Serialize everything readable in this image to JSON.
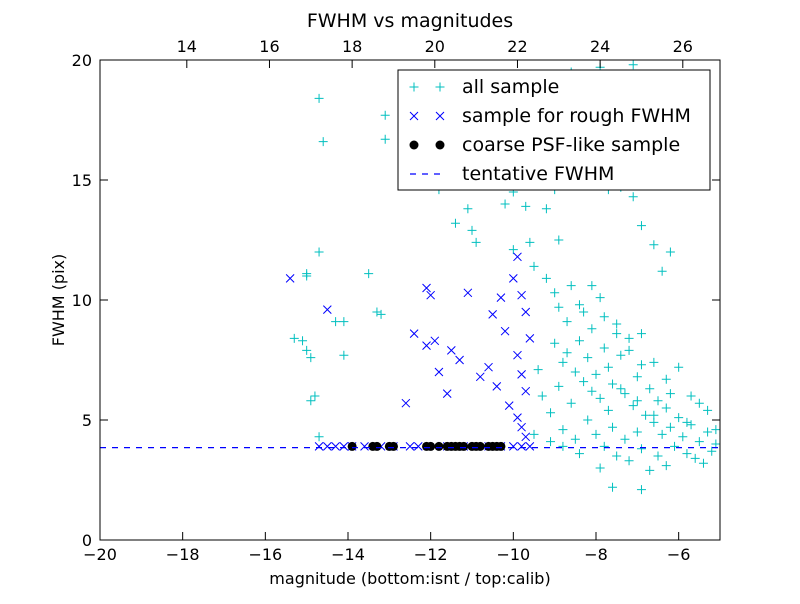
{
  "chart_data": {
    "type": "scatter",
    "title": "FWHM vs magnitudes",
    "xlabel": "magnitude (bottom:isnt / top:calib)",
    "ylabel": "FWHM (pix)",
    "xlim": [
      -20,
      -5
    ],
    "ylim": [
      0,
      20
    ],
    "x_ticks": [
      -20,
      -18,
      -16,
      -14,
      -12,
      -10,
      -8,
      -6
    ],
    "x_tick_labels": [
      "−20",
      "−18",
      "−16",
      "−14",
      "−12",
      "−10",
      "−8",
      "−6"
    ],
    "y_ticks": [
      0,
      5,
      10,
      15,
      20
    ],
    "y_tick_labels": [
      "0",
      "5",
      "10",
      "15",
      "20"
    ],
    "top_axis": {
      "offset": 31.9,
      "ticks": [
        14,
        16,
        18,
        20,
        22,
        24,
        26
      ],
      "tick_labels": [
        "14",
        "16",
        "18",
        "20",
        "22",
        "24",
        "26"
      ]
    },
    "grid": false,
    "legend_position": "top-right",
    "series": [
      {
        "name": "all sample",
        "marker": "plus",
        "color": "#00bfbf",
        "points": [
          [
            -14.7,
            18.4
          ],
          [
            -14.6,
            16.6
          ],
          [
            -13.1,
            17.7
          ],
          [
            -13.1,
            16.7
          ],
          [
            -14.7,
            12.0
          ],
          [
            -15.0,
            11.1
          ],
          [
            -15.0,
            11.0
          ],
          [
            -13.5,
            11.1
          ],
          [
            -14.1,
            9.1
          ],
          [
            -14.3,
            9.1
          ],
          [
            -13.2,
            9.4
          ],
          [
            -13.3,
            9.5
          ],
          [
            -15.3,
            8.4
          ],
          [
            -15.1,
            8.3
          ],
          [
            -15.0,
            7.9
          ],
          [
            -14.9,
            7.6
          ],
          [
            -14.1,
            7.7
          ],
          [
            -14.8,
            6.0
          ],
          [
            -14.9,
            5.8
          ],
          [
            -14.7,
            4.3
          ],
          [
            -11.8,
            14.6
          ],
          [
            -11.4,
            13.2
          ],
          [
            -11.1,
            13.8
          ],
          [
            -11.0,
            12.9
          ],
          [
            -10.9,
            12.4
          ],
          [
            -10.2,
            14.0
          ],
          [
            -10.0,
            14.5
          ],
          [
            -10.0,
            12.1
          ],
          [
            -9.8,
            15.5
          ],
          [
            -9.7,
            13.9
          ],
          [
            -9.6,
            12.4
          ],
          [
            -9.4,
            15.9
          ],
          [
            -9.5,
            11.4
          ],
          [
            -9.2,
            13.8
          ],
          [
            -9.0,
            14.6
          ],
          [
            -8.9,
            12.5
          ],
          [
            -8.6,
            19.5
          ],
          [
            -8.4,
            17.3
          ],
          [
            -8.2,
            18.8
          ],
          [
            -8.0,
            16.2
          ],
          [
            -7.9,
            19.7
          ],
          [
            -7.8,
            16.0
          ],
          [
            -7.7,
            14.6
          ],
          [
            -7.5,
            18.1
          ],
          [
            -7.4,
            14.7
          ],
          [
            -7.3,
            16.9
          ],
          [
            -7.1,
            19.8
          ],
          [
            -7.1,
            14.3
          ],
          [
            -6.9,
            13.1
          ],
          [
            -6.8,
            15.4
          ],
          [
            -6.6,
            12.3
          ],
          [
            -6.4,
            11.2
          ],
          [
            -6.2,
            12.0
          ],
          [
            -9.2,
            10.9
          ],
          [
            -9.0,
            10.3
          ],
          [
            -8.9,
            9.7
          ],
          [
            -8.7,
            9.1
          ],
          [
            -8.6,
            10.6
          ],
          [
            -8.4,
            8.3
          ],
          [
            -8.3,
            9.5
          ],
          [
            -8.2,
            7.6
          ],
          [
            -8.1,
            8.8
          ],
          [
            -8.0,
            6.9
          ],
          [
            -7.9,
            10.1
          ],
          [
            -7.8,
            8.0
          ],
          [
            -7.7,
            7.2
          ],
          [
            -7.6,
            6.5
          ],
          [
            -7.5,
            9.0
          ],
          [
            -7.4,
            7.7
          ],
          [
            -7.3,
            6.1
          ],
          [
            -7.2,
            8.4
          ],
          [
            -7.1,
            5.6
          ],
          [
            -7.0,
            6.8
          ],
          [
            -6.9,
            7.3
          ],
          [
            -6.8,
            5.2
          ],
          [
            -6.7,
            6.3
          ],
          [
            -6.6,
            4.9
          ],
          [
            -6.5,
            5.8
          ],
          [
            -6.4,
            4.4
          ],
          [
            -6.3,
            5.5
          ],
          [
            -6.2,
            4.7
          ],
          [
            -6.1,
            3.9
          ],
          [
            -6.0,
            5.1
          ],
          [
            -5.9,
            4.3
          ],
          [
            -5.8,
            3.6
          ],
          [
            -5.7,
            4.8
          ],
          [
            -5.6,
            3.4
          ],
          [
            -5.5,
            4.1
          ],
          [
            -5.4,
            3.2
          ],
          [
            -5.3,
            4.5
          ],
          [
            -5.2,
            3.7
          ],
          [
            -5.1,
            4.0
          ],
          [
            -9.4,
            7.1
          ],
          [
            -9.3,
            6.0
          ],
          [
            -9.1,
            5.3
          ],
          [
            -8.9,
            6.4
          ],
          [
            -8.8,
            4.6
          ],
          [
            -8.6,
            5.7
          ],
          [
            -8.5,
            4.2
          ],
          [
            -8.3,
            6.6
          ],
          [
            -8.2,
            5.0
          ],
          [
            -8.0,
            4.4
          ],
          [
            -7.9,
            5.9
          ],
          [
            -7.8,
            3.9
          ],
          [
            -7.6,
            4.7
          ],
          [
            -7.5,
            3.5
          ],
          [
            -7.3,
            4.2
          ],
          [
            -7.2,
            3.3
          ],
          [
            -7.0,
            4.5
          ],
          [
            -6.9,
            3.8
          ],
          [
            -6.7,
            2.9
          ],
          [
            -6.5,
            3.5
          ],
          [
            -6.3,
            3.1
          ],
          [
            -7.6,
            2.2
          ],
          [
            -6.9,
            2.1
          ],
          [
            -7.9,
            3.0
          ],
          [
            -8.4,
            3.6
          ],
          [
            -8.8,
            3.9
          ],
          [
            -9.1,
            4.1
          ],
          [
            -9.5,
            4.4
          ],
          [
            -8.7,
            7.8
          ],
          [
            -8.5,
            7.0
          ],
          [
            -8.1,
            6.2
          ],
          [
            -7.7,
            5.4
          ],
          [
            -7.4,
            6.3
          ],
          [
            -7.0,
            5.8
          ],
          [
            -6.6,
            5.2
          ],
          [
            -6.2,
            6.1
          ],
          [
            -5.8,
            4.9
          ],
          [
            -5.5,
            5.7
          ],
          [
            -9.0,
            8.2
          ],
          [
            -8.8,
            7.4
          ],
          [
            -8.4,
            9.8
          ],
          [
            -8.1,
            10.6
          ],
          [
            -7.8,
            9.3
          ],
          [
            -7.5,
            8.6
          ],
          [
            -7.2,
            7.9
          ],
          [
            -6.9,
            8.6
          ],
          [
            -6.6,
            7.4
          ],
          [
            -6.3,
            6.7
          ],
          [
            -6.0,
            7.2
          ],
          [
            -5.7,
            6.0
          ],
          [
            -5.3,
            5.4
          ],
          [
            -5.1,
            4.6
          ]
        ]
      },
      {
        "name": "sample for rough FWHM",
        "marker": "x",
        "color": "#0000ff",
        "points": [
          [
            -15.4,
            10.9
          ],
          [
            -14.5,
            9.6
          ],
          [
            -12.6,
            5.7
          ],
          [
            -12.1,
            10.5
          ],
          [
            -12.0,
            10.2
          ],
          [
            -12.4,
            8.6
          ],
          [
            -12.1,
            8.1
          ],
          [
            -11.9,
            8.3
          ],
          [
            -11.5,
            7.9
          ],
          [
            -11.8,
            7.0
          ],
          [
            -11.3,
            7.5
          ],
          [
            -11.1,
            10.3
          ],
          [
            -11.6,
            6.1
          ],
          [
            -10.8,
            6.8
          ],
          [
            -10.6,
            7.2
          ],
          [
            -10.4,
            6.4
          ],
          [
            -10.5,
            9.4
          ],
          [
            -10.3,
            10.1
          ],
          [
            -10.2,
            8.7
          ],
          [
            -10.0,
            10.9
          ],
          [
            -9.9,
            11.8
          ],
          [
            -9.8,
            10.2
          ],
          [
            -9.7,
            9.5
          ],
          [
            -9.6,
            8.4
          ],
          [
            -9.9,
            7.7
          ],
          [
            -9.8,
            6.9
          ],
          [
            -9.7,
            6.2
          ],
          [
            -10.1,
            5.6
          ],
          [
            -9.9,
            5.1
          ],
          [
            -9.8,
            4.7
          ],
          [
            -9.7,
            4.3
          ],
          [
            -14.7,
            3.9
          ],
          [
            -14.5,
            3.9
          ],
          [
            -14.3,
            3.9
          ],
          [
            -14.1,
            3.9
          ],
          [
            -13.9,
            3.9
          ],
          [
            -13.6,
            3.9
          ],
          [
            -13.2,
            3.9
          ],
          [
            -12.9,
            3.9
          ],
          [
            -12.5,
            3.9
          ],
          [
            -12.3,
            3.9
          ],
          [
            -11.9,
            3.9
          ],
          [
            -11.6,
            3.9
          ],
          [
            -11.2,
            3.9
          ],
          [
            -10.9,
            3.9
          ],
          [
            -10.6,
            3.9
          ],
          [
            -10.3,
            3.9
          ],
          [
            -10.0,
            3.9
          ],
          [
            -9.8,
            3.9
          ],
          [
            -9.6,
            3.9
          ]
        ]
      },
      {
        "name": "coarse PSF-like sample",
        "marker": "dot",
        "color": "#000000",
        "points": [
          [
            -13.9,
            3.9
          ],
          [
            -13.4,
            3.9
          ],
          [
            -13.3,
            3.9
          ],
          [
            -13.0,
            3.9
          ],
          [
            -12.9,
            3.9
          ],
          [
            -12.1,
            3.9
          ],
          [
            -12.0,
            3.9
          ],
          [
            -11.8,
            3.9
          ],
          [
            -11.6,
            3.9
          ],
          [
            -11.5,
            3.9
          ],
          [
            -11.4,
            3.9
          ],
          [
            -11.3,
            3.9
          ],
          [
            -11.2,
            3.9
          ],
          [
            -11.0,
            3.9
          ],
          [
            -10.9,
            3.9
          ],
          [
            -10.8,
            3.9
          ],
          [
            -10.6,
            3.9
          ],
          [
            -10.5,
            3.9
          ],
          [
            -10.4,
            3.9
          ],
          [
            -10.3,
            3.9
          ]
        ]
      },
      {
        "name": "tentative FWHM",
        "marker": "dashed-line",
        "color": "#0000ff",
        "y": 3.85
      }
    ]
  }
}
